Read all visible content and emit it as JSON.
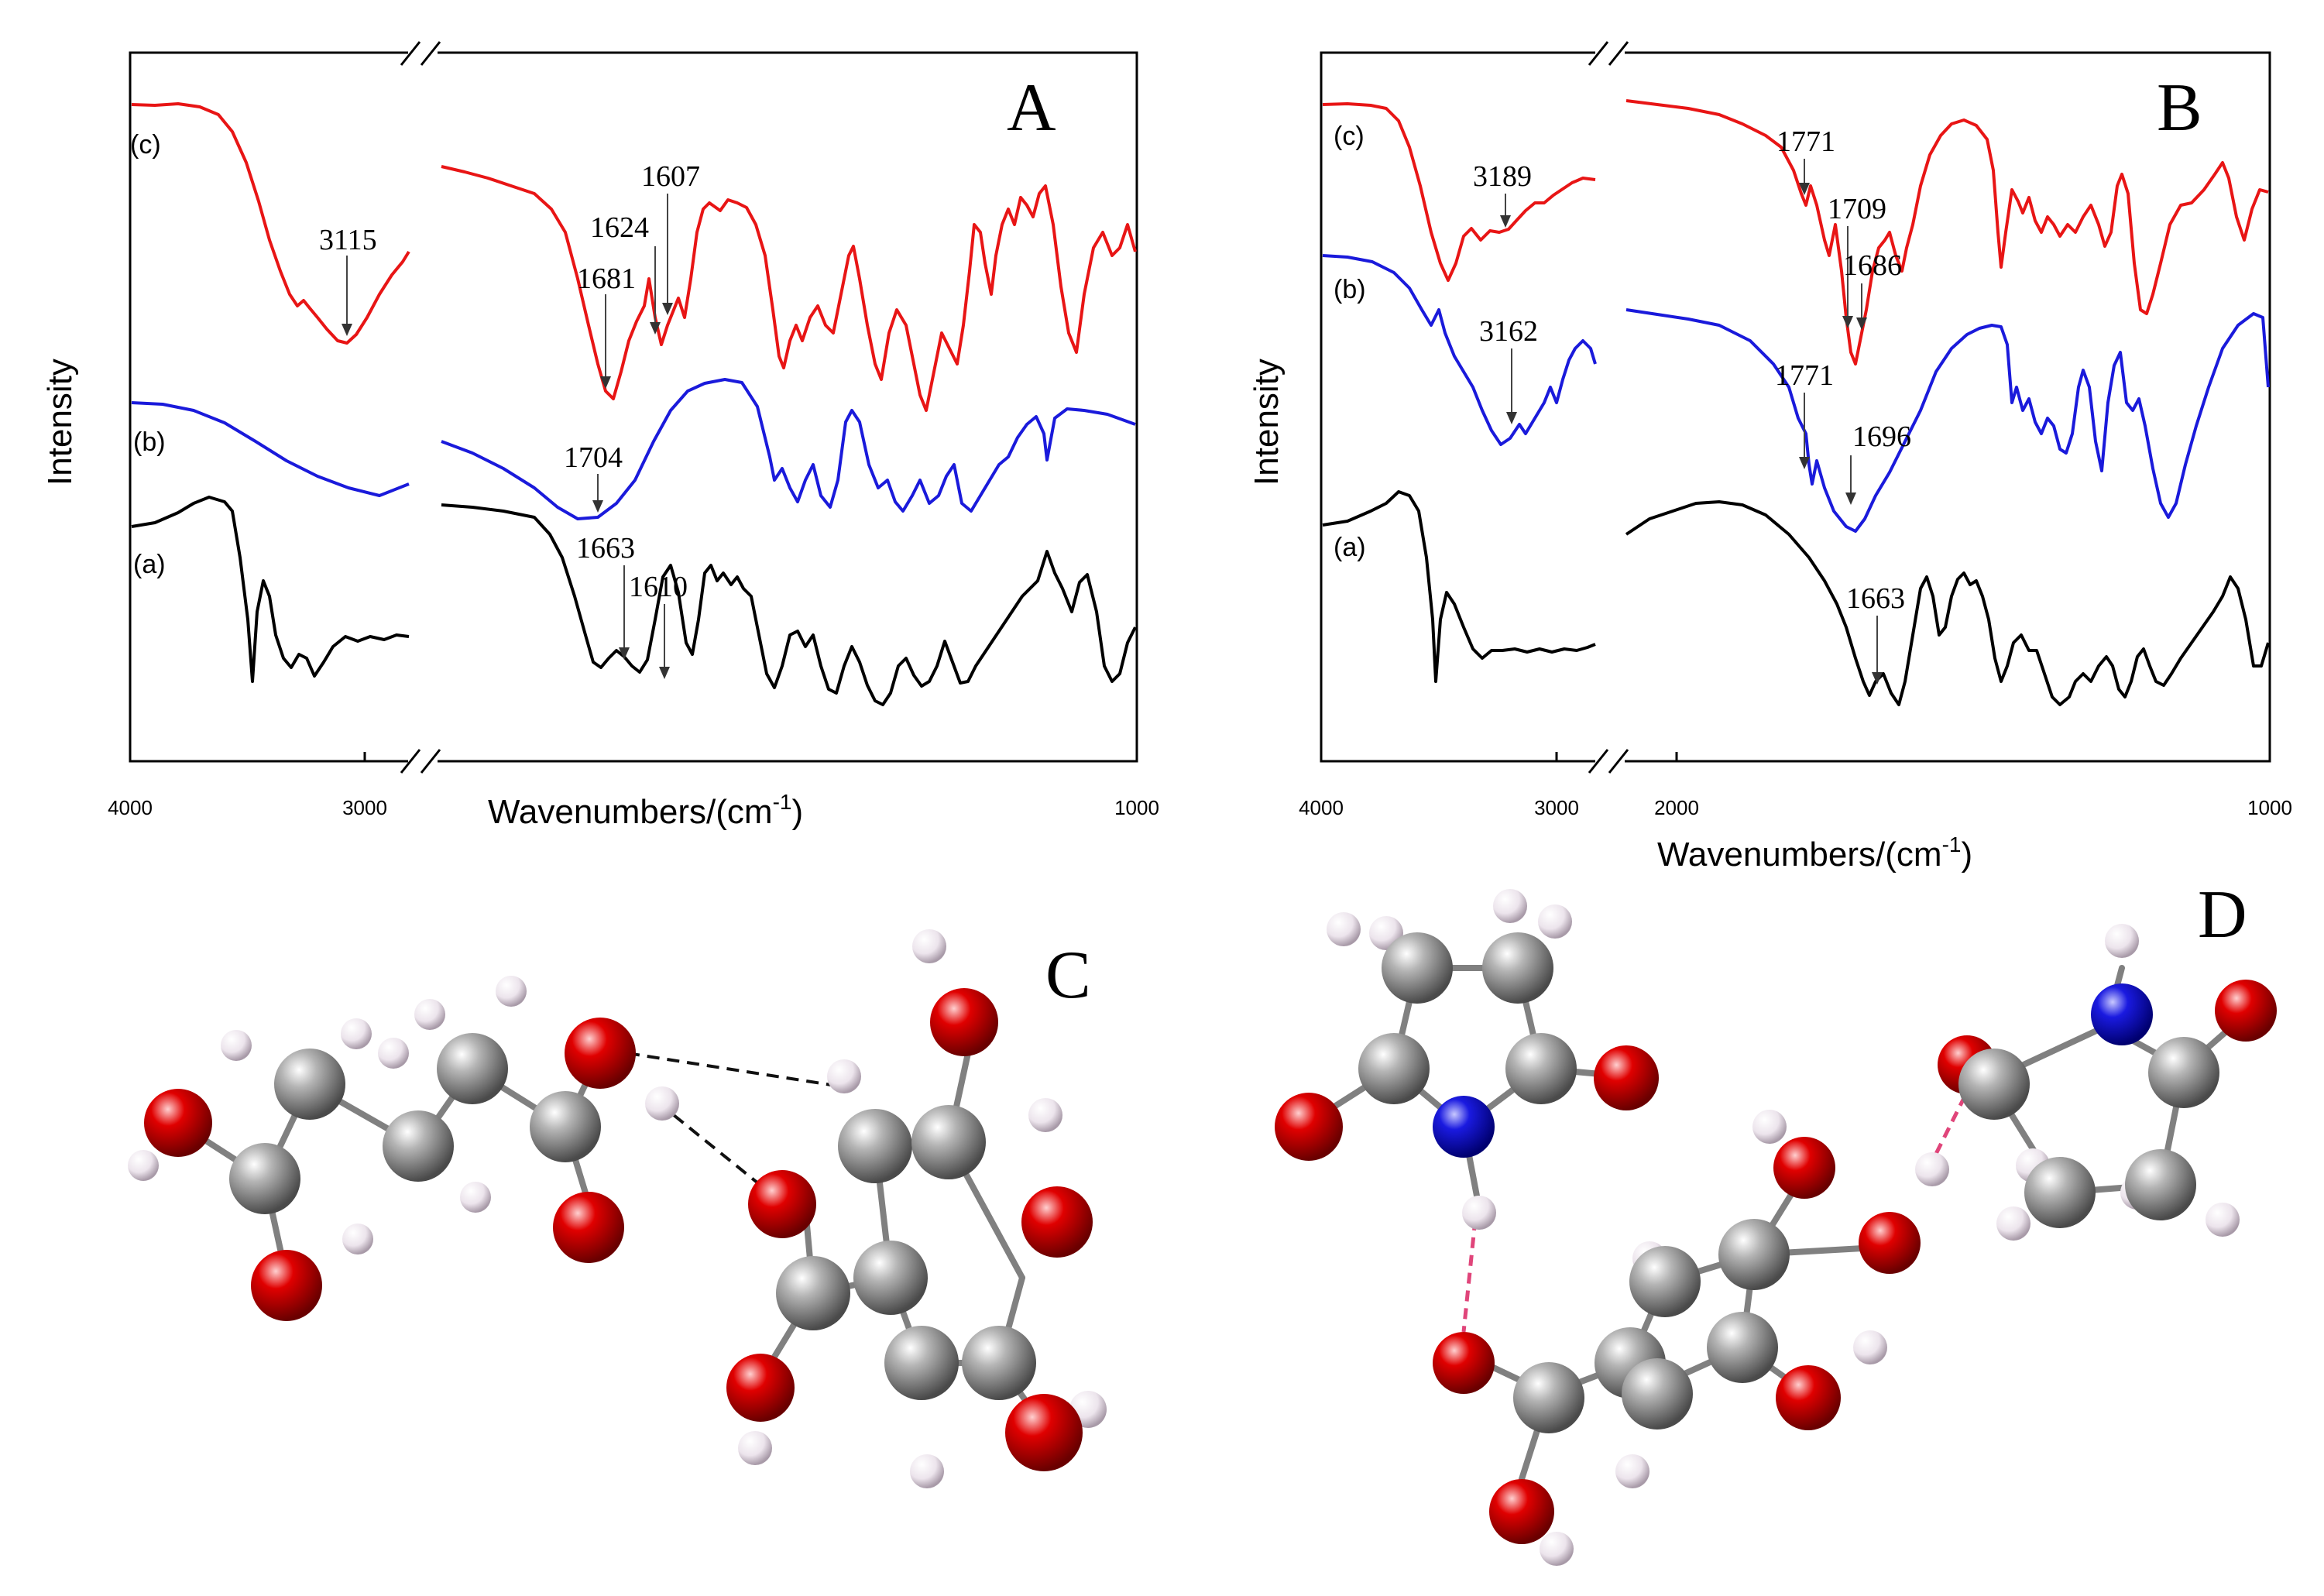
{
  "panels": [
    {
      "letter": "A",
      "ylabel": "Intensity",
      "xlabel_main": "Wavenumbers/(cm",
      "xlabel_sup": "-1",
      "xlabel_close": ")",
      "ticks": [
        "4000",
        "3000",
        "1000"
      ],
      "series": [
        {
          "label": "(a)",
          "color": "#000000"
        },
        {
          "label": "(b)",
          "color": "#1a1adb"
        },
        {
          "label": "(c)",
          "color": "#e81515"
        }
      ],
      "peaks": [
        "3115",
        "1681",
        "1624",
        "1607",
        "1704",
        "1663",
        "1610"
      ]
    },
    {
      "letter": "B",
      "ylabel": "Intensity",
      "xlabel_main": "Wavenumbers/(cm",
      "xlabel_sup": "-1",
      "xlabel_close": ")",
      "ticks": [
        "4000",
        "3000",
        "2000",
        "1000"
      ],
      "series": [
        {
          "label": "(a)",
          "color": "#000000"
        },
        {
          "label": "(b)",
          "color": "#1a1adb"
        },
        {
          "label": "(c)",
          "color": "#e81515"
        }
      ],
      "peaks": [
        "3189",
        "1771",
        "1709",
        "1686",
        "3162",
        "1771",
        "1696",
        "1663"
      ]
    }
  ],
  "chart_data": [
    {
      "type": "line",
      "panel": "A",
      "x_axis": {
        "label": "Wavenumbers/(cm-1)",
        "range": [
          4000,
          1000
        ],
        "broken": true,
        "ticks": [
          4000,
          3000,
          1000
        ]
      },
      "y_axis": {
        "label": "Intensity",
        "tick_labels": false
      },
      "series": [
        {
          "name": "(a)",
          "color": "#000000",
          "peaks_cm-1": [
            1663,
            1610
          ]
        },
        {
          "name": "(b)",
          "color": "#1a1adb",
          "peaks_cm-1": [
            1704
          ]
        },
        {
          "name": "(c)",
          "color": "#e81515",
          "peaks_cm-1": [
            3115,
            1681,
            1624,
            1607
          ]
        }
      ]
    },
    {
      "type": "line",
      "panel": "B",
      "x_axis": {
        "label": "Wavenumbers/(cm-1)",
        "range": [
          4000,
          1000
        ],
        "broken": true,
        "ticks": [
          4000,
          3000,
          2000,
          1000
        ]
      },
      "y_axis": {
        "label": "Intensity",
        "tick_labels": false
      },
      "series": [
        {
          "name": "(a)",
          "color": "#000000",
          "peaks_cm-1": [
            1663
          ]
        },
        {
          "name": "(b)",
          "color": "#1a1adb",
          "peaks_cm-1": [
            3162,
            1771,
            1696
          ]
        },
        {
          "name": "(c)",
          "color": "#e81515",
          "peaks_cm-1": [
            3189,
            1771,
            1709,
            1686
          ]
        }
      ]
    }
  ],
  "structures": {
    "c_letter": "C",
    "d_letter": "D",
    "atom_colors": {
      "carbon": "#8a8a8a",
      "oxygen": "#d40000",
      "nitrogen": "#1414c8",
      "hydrogen": "#ece6ec"
    }
  }
}
